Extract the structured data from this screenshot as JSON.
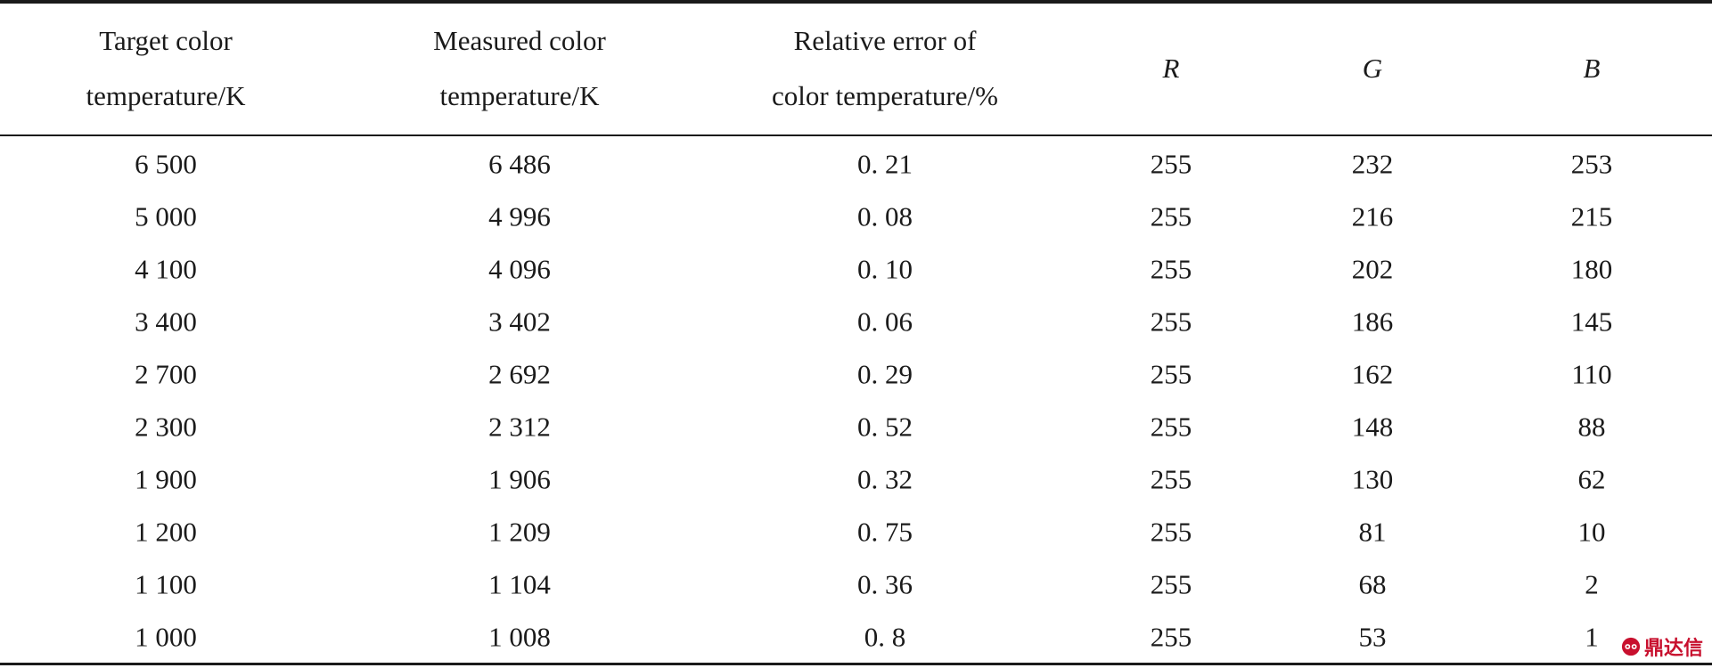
{
  "table": {
    "headers": [
      {
        "line1": "Target color",
        "line2": "temperature/K"
      },
      {
        "line1": "Measured color",
        "line2": "temperature/K"
      },
      {
        "line1": "Relative error of",
        "line2": "color temperature/%"
      },
      {
        "line1": "R",
        "line2": ""
      },
      {
        "line1": "G",
        "line2": ""
      },
      {
        "line1": "B",
        "line2": ""
      }
    ],
    "rows": [
      [
        "6 500",
        "6 486",
        "0. 21",
        "255",
        "232",
        "253"
      ],
      [
        "5 000",
        "4 996",
        "0. 08",
        "255",
        "216",
        "215"
      ],
      [
        "4 100",
        "4 096",
        "0. 10",
        "255",
        "202",
        "180"
      ],
      [
        "3 400",
        "3 402",
        "0. 06",
        "255",
        "186",
        "145"
      ],
      [
        "2 700",
        "2 692",
        "0. 29",
        "255",
        "162",
        "110"
      ],
      [
        "2 300",
        "2 312",
        "0. 52",
        "255",
        "148",
        "88"
      ],
      [
        "1 900",
        "1 906",
        "0. 32",
        "255",
        "130",
        "62"
      ],
      [
        "1 200",
        "1 209",
        "0. 75",
        "255",
        "81",
        "10"
      ],
      [
        "1 100",
        "1 104",
        "0. 36",
        "255",
        "68",
        "2"
      ],
      [
        "1 000",
        "1 008",
        "0. 8",
        "255",
        "53",
        "1"
      ]
    ]
  },
  "watermark": {
    "text": "鼎达信",
    "color": "#c8102e",
    "icon": "eye-logo-icon"
  }
}
